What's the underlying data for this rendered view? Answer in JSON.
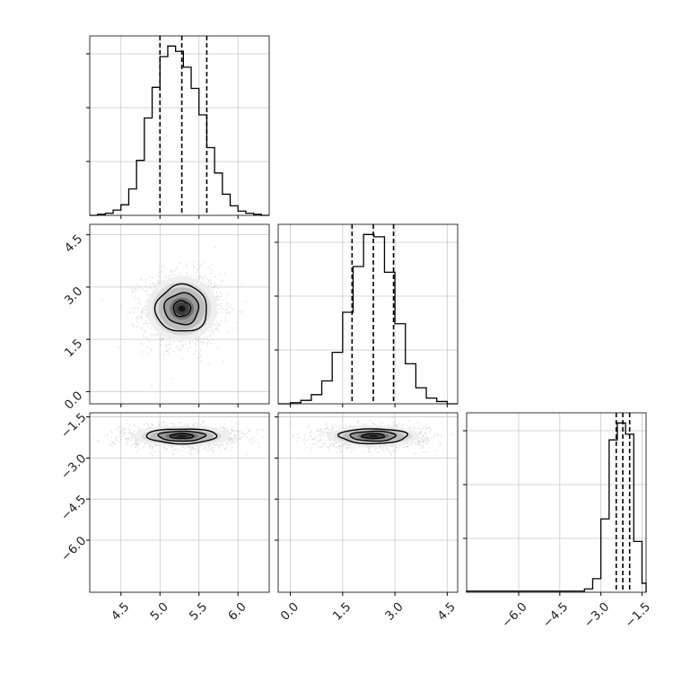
{
  "chart_data": {
    "type": "corner",
    "params": [
      {
        "range": [
          4.1,
          6.4
        ],
        "ticks": [
          "4.5",
          "5.0",
          "5.5",
          "6.0"
        ],
        "tick_values": [
          4.5,
          5.0,
          5.5,
          6.0
        ],
        "quantiles": [
          5.0,
          5.28,
          5.6
        ]
      },
      {
        "range": [
          -0.35,
          4.8
        ],
        "ticks": [
          "0.0",
          "1.5",
          "3.0",
          "4.5"
        ],
        "tick_values": [
          0.0,
          1.5,
          3.0,
          4.5
        ],
        "quantiles": [
          1.77,
          2.38,
          2.96
        ]
      },
      {
        "range": [
          -7.9,
          -1.35
        ],
        "ticks": [
          "−6.0",
          "−4.5",
          "−3.0",
          "−1.5"
        ],
        "tick_values": [
          -6.0,
          -4.5,
          -3.0,
          -1.5
        ],
        "quantiles": [
          -2.44,
          -2.2,
          -1.95
        ]
      }
    ],
    "histograms": [
      {
        "param": 0,
        "bin_edges": [
          4.1,
          4.2,
          4.3,
          4.4,
          4.5,
          4.6,
          4.7,
          4.8,
          4.9,
          5.0,
          5.1,
          5.2,
          5.3,
          5.4,
          5.5,
          5.6,
          5.7,
          5.8,
          5.9,
          6.0,
          6.1,
          6.2,
          6.3,
          6.4
        ],
        "counts": [
          0,
          1,
          2,
          5,
          10,
          25,
          52,
          92,
          121,
          150,
          160,
          155,
          140,
          120,
          95,
          64,
          40,
          20,
          9,
          4,
          2,
          1,
          0
        ]
      },
      {
        "param": 1,
        "bin_edges": [
          -0.35,
          0.0,
          0.3,
          0.6,
          0.9,
          1.2,
          1.5,
          1.8,
          2.1,
          2.4,
          2.7,
          3.0,
          3.3,
          3.6,
          3.9,
          4.2,
          4.5,
          4.8
        ],
        "counts": [
          0,
          1,
          3,
          8,
          20,
          45,
          80,
          120,
          148,
          146,
          115,
          70,
          35,
          14,
          5,
          2,
          0
        ]
      },
      {
        "param": 2,
        "bin_edges": [
          -7.9,
          -3.6,
          -3.3,
          -3.0,
          -2.7,
          -2.4,
          -2.1,
          -1.8,
          -1.5,
          -1.35
        ],
        "counts": [
          1,
          3,
          12,
          65,
          135,
          150,
          140,
          45,
          8
        ]
      }
    ],
    "contours_2d": [
      {
        "x_param": 0,
        "y_param": 1,
        "center": [
          5.28,
          2.38
        ],
        "sigma": [
          0.22,
          0.45
        ],
        "levels": [
          "0.5",
          "1.0",
          "1.5"
        ]
      },
      {
        "x_param": 0,
        "y_param": 2,
        "center": [
          5.28,
          -2.2
        ],
        "sigma": [
          0.3,
          0.18
        ],
        "levels": [
          "0.5",
          "1.0",
          "1.5"
        ]
      },
      {
        "x_param": 1,
        "y_param": 2,
        "center": [
          2.38,
          -2.2
        ],
        "sigma": [
          0.65,
          0.18
        ],
        "levels": [
          "0.5",
          "1.0",
          "1.5"
        ]
      }
    ],
    "grid": true,
    "title": "",
    "xlabel": "",
    "ylabel": ""
  }
}
